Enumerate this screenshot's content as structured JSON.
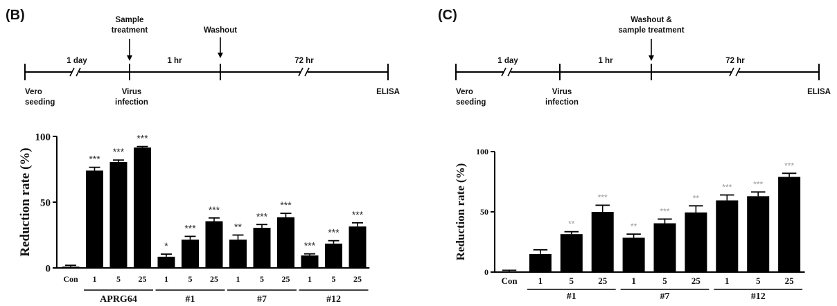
{
  "panels": [
    {
      "label": "(B)",
      "timeline": {
        "top_labels": [
          [
            "Sample",
            "treatment"
          ],
          [
            "Washout"
          ]
        ],
        "intervals": [
          "1 day",
          "1 hr",
          "72 hr"
        ],
        "bottom_labels": [
          [
            "Vero",
            "seeding"
          ],
          [
            "Virus",
            "infection"
          ],
          [
            "ELISA"
          ]
        ]
      }
    },
    {
      "label": "(C)",
      "timeline": {
        "top_labels": [
          [
            "Washout &",
            "sample treatment"
          ]
        ],
        "intervals": [
          "1 day",
          "1 hr",
          "72 hr"
        ],
        "bottom_labels": [
          [
            "Vero",
            "seeding"
          ],
          [
            "Virus",
            "infection"
          ],
          [
            "ELISA"
          ]
        ]
      }
    }
  ],
  "chart_data": [
    {
      "type": "bar",
      "panel": "(B)",
      "title": "",
      "xlabel": "",
      "ylabel": "Reduction rate (%)",
      "ylim": [
        0,
        100
      ],
      "yticks": [
        0,
        50,
        100
      ],
      "ytick_labels": [
        "0",
        "50",
        "100"
      ],
      "categories": [
        "Con",
        "1",
        "5",
        "25",
        "1",
        "5",
        "25",
        "1",
        "5",
        "25",
        "1",
        "5",
        "25"
      ],
      "values": [
        1,
        74,
        80.5,
        91.5,
        8.5,
        21.5,
        35.5,
        21.5,
        30.5,
        38.5,
        9.5,
        18.5,
        31.5
      ],
      "errors": [
        1,
        2.5,
        1.5,
        0.8,
        2,
        2.5,
        2.5,
        3.5,
        2.5,
        3,
        1.2,
        2.2,
        2.8
      ],
      "significance": [
        "",
        "***",
        "***",
        "***",
        "*",
        "***",
        "***",
        "**",
        "***",
        "***",
        "***",
        "***",
        "***"
      ],
      "significance_color": "#2a2a2a",
      "groups": [
        {
          "label": "APRG64",
          "start": 1,
          "end": 3
        },
        {
          "label": "#1",
          "start": 4,
          "end": 6
        },
        {
          "label": "#7",
          "start": 7,
          "end": 9
        },
        {
          "label": "#12",
          "start": 10,
          "end": 12
        }
      ],
      "bar_color": "#000000",
      "grid": false,
      "legend": "none"
    },
    {
      "type": "bar",
      "panel": "(C)",
      "title": "",
      "xlabel": "",
      "ylabel": "Reduction rate (%)",
      "ylim": [
        0,
        100
      ],
      "yticks": [
        0,
        50,
        100
      ],
      "ytick_labels": [
        "0",
        "50",
        "100"
      ],
      "categories": [
        "Con",
        "1",
        "5",
        "25",
        "1",
        "5",
        "25",
        "1",
        "5",
        "25"
      ],
      "values": [
        0.5,
        15,
        31.5,
        50,
        28.5,
        40.5,
        49.5,
        59.5,
        63,
        79
      ],
      "errors": [
        1,
        3.5,
        2,
        5.5,
        3,
        3.5,
        5.5,
        4.5,
        3.5,
        3
      ],
      "significance": [
        "",
        "",
        "**",
        "***",
        "**",
        "***",
        "**",
        "***",
        "***",
        "***"
      ],
      "significance_color": "#9a9a9a",
      "groups": [
        {
          "label": "#1",
          "start": 1,
          "end": 3
        },
        {
          "label": "#7",
          "start": 4,
          "end": 6
        },
        {
          "label": "#12",
          "start": 7,
          "end": 9
        }
      ],
      "bar_color": "#000000",
      "grid": false,
      "legend": "none"
    }
  ]
}
